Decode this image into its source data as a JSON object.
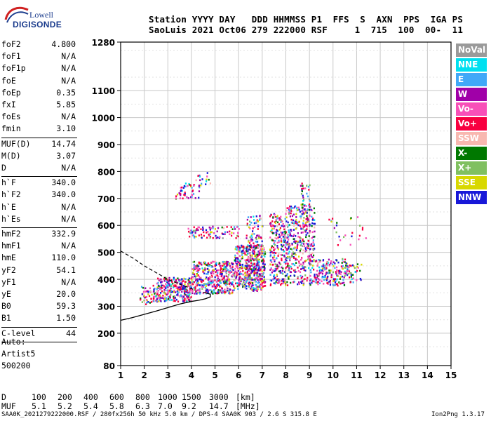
{
  "logo": {
    "line1": "Lowell",
    "line2": "DIGISONDE"
  },
  "header": {
    "line1": "Station YYYY DAY   DDD HHMMSS P1  FFS  S  AXN  PPS  IGA PS",
    "line2": "SaoLuis 2021 Oct06 279 222000 RSF     1  715  100  00-  11"
  },
  "params": [
    {
      "key": "foF2",
      "value": "4.800"
    },
    {
      "key": "foF1",
      "value": "N/A"
    },
    {
      "key": "foF1p",
      "value": "N/A"
    },
    {
      "key": "foE",
      "value": "N/A"
    },
    {
      "key": "foEp",
      "value": "0.35"
    },
    {
      "key": "fxI",
      "value": "5.85"
    },
    {
      "key": "foEs",
      "value": "N/A"
    },
    {
      "key": "fmin",
      "value": "3.10"
    },
    {
      "key": "MUF(D)",
      "value": "14.74"
    },
    {
      "key": "M(D)",
      "value": "3.07"
    },
    {
      "key": "D",
      "value": "N/A"
    },
    {
      "key": "h`F",
      "value": "340.0"
    },
    {
      "key": "h`F2",
      "value": "340.0"
    },
    {
      "key": "h`E",
      "value": "N/A"
    },
    {
      "key": "h`Es",
      "value": "N/A"
    },
    {
      "key": "hmF2",
      "value": "332.9"
    },
    {
      "key": "hmF1",
      "value": "N/A"
    },
    {
      "key": "hmE",
      "value": "110.0"
    },
    {
      "key": "yF2",
      "value": "54.1"
    },
    {
      "key": "yF1",
      "value": "N/A"
    },
    {
      "key": "yE",
      "value": "20.0"
    },
    {
      "key": "B0",
      "value": "59.3"
    },
    {
      "key": "B1",
      "value": "1.50"
    },
    {
      "key": "C-level",
      "value": "44"
    }
  ],
  "auto": {
    "line1": "Auto:",
    "line2": "Artist5",
    "line3": "500200"
  },
  "legend": [
    {
      "label": "NoVal",
      "color": "#9a9a9a"
    },
    {
      "label": "NNE",
      "color": "#00e0f0"
    },
    {
      "label": "E",
      "color": "#40a8f8"
    },
    {
      "label": "W",
      "color": "#a000a8"
    },
    {
      "label": "Vo-",
      "color": "#f850b8"
    },
    {
      "label": "Vo+",
      "color": "#f80040"
    },
    {
      "label": "SSW",
      "color": "#f8b8b0"
    },
    {
      "label": "X-",
      "color": "#007800"
    },
    {
      "label": "X+",
      "color": "#80c060"
    },
    {
      "label": "SSE",
      "color": "#d8d800"
    },
    {
      "label": "NNW",
      "color": "#1818d8"
    }
  ],
  "muf_table": {
    "d_label": "D",
    "muf_label": "MUF",
    "d_values": [
      "100",
      "200",
      "400",
      "600",
      "800",
      "1000",
      "1500",
      "3000",
      "[km]"
    ],
    "muf_values": [
      "5.1",
      "5.2",
      "5.4",
      "5.8",
      "6.3",
      "7.0",
      "9.2",
      "14.7",
      "[MHz]"
    ]
  },
  "footer": {
    "left": "SAA0K_2021279222000.RSF / 280fx256h 50 kHz 5.0 km / DPS-4 SAA0K 903 / 2.6 S 315.8 E",
    "right": "Ion2Png 1.3.17"
  },
  "chart_data": {
    "type": "scatter",
    "xlim": [
      1,
      15
    ],
    "ylim": [
      80,
      1280
    ],
    "x_ticks": [
      1,
      2,
      3,
      4,
      5,
      6,
      7,
      8,
      9,
      10,
      11,
      12,
      13,
      14,
      15
    ],
    "y_ticks": [
      80,
      200,
      300,
      400,
      500,
      600,
      700,
      800,
      900,
      1000,
      1100,
      1280
    ],
    "grid": true,
    "echo_clusters": [
      {
        "x": [
          1.8,
          2.5
        ],
        "y": [
          310,
          380
        ],
        "density": 55
      },
      {
        "x": [
          2.5,
          4.0
        ],
        "y": [
          320,
          410
        ],
        "density": 300
      },
      {
        "x": [
          4.0,
          5.8
        ],
        "y": [
          350,
          470
        ],
        "density": 420
      },
      {
        "x": [
          5.8,
          7.1
        ],
        "y": [
          360,
          530
        ],
        "density": 420
      },
      {
        "x": [
          6.3,
          7.0
        ],
        "y": [
          400,
          640
        ],
        "density": 160
      },
      {
        "x": [
          7.3,
          8.0
        ],
        "y": [
          380,
          650
        ],
        "density": 240
      },
      {
        "x": [
          8.0,
          9.2
        ],
        "y": [
          380,
          680
        ],
        "density": 380
      },
      {
        "x": [
          8.6,
          9.0
        ],
        "y": [
          600,
          760
        ],
        "density": 60
      },
      {
        "x": [
          9.2,
          10.6
        ],
        "y": [
          380,
          480
        ],
        "density": 180
      },
      {
        "x": [
          10.6,
          11.2
        ],
        "y": [
          390,
          460
        ],
        "density": 35
      },
      {
        "x": [
          3.3,
          4.3
        ],
        "y": [
          700,
          760
        ],
        "density": 45
      },
      {
        "x": [
          4.0,
          4.8
        ],
        "y": [
          730,
          800
        ],
        "density": 20
      },
      {
        "x": [
          3.8,
          6.0
        ],
        "y": [
          555,
          600
        ],
        "density": 90
      },
      {
        "x": [
          9.8,
          11.4
        ],
        "y": [
          530,
          640
        ],
        "density": 25
      }
    ],
    "solid_profile": {
      "x": [
        1.0,
        1.5,
        2.0,
        2.5,
        3.0,
        3.5,
        4.0,
        4.3,
        4.6,
        4.8,
        4.8,
        4.5
      ],
      "y": [
        248,
        258,
        270,
        282,
        295,
        308,
        318,
        322,
        328,
        335,
        345,
        352
      ]
    },
    "dashed_profile": {
      "x": [
        1.0,
        1.5,
        2.0,
        2.5,
        3.0,
        3.5,
        3.8,
        4.1
      ],
      "y": [
        505,
        480,
        450,
        425,
        400,
        382,
        372,
        362
      ]
    }
  }
}
